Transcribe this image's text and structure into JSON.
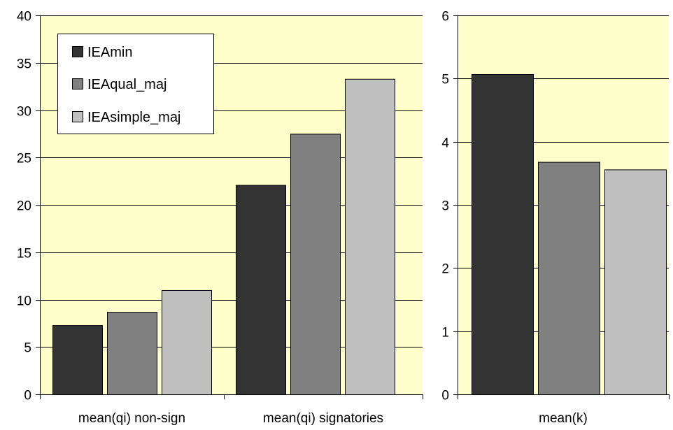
{
  "colors": {
    "plot_background": "#ffffcc",
    "gridline": "#000000",
    "axis": "#000000",
    "bar_border": "#000000",
    "series": [
      "#333333",
      "#808080",
      "#c0c0c0"
    ]
  },
  "legend": {
    "placement": "top-left (left chart)",
    "entries": [
      "IEAmin",
      "IEAqual_maj",
      "IEAsimple_maj"
    ]
  },
  "chart_data": [
    {
      "type": "bar",
      "title": "",
      "xlabel": "",
      "ylabel": "",
      "categories": [
        "mean(qi) non-sign",
        "mean(qi) signatories"
      ],
      "series": [
        {
          "name": "IEAmin",
          "values": [
            7.3,
            22.1
          ]
        },
        {
          "name": "IEAqual_maj",
          "values": [
            8.7,
            27.5
          ]
        },
        {
          "name": "IEAsimple_maj",
          "values": [
            11.0,
            33.3
          ]
        }
      ],
      "ylim": [
        0,
        40
      ],
      "yticks": [
        0,
        5,
        10,
        15,
        20,
        25,
        30,
        35,
        40
      ],
      "ytick_labels": [
        "0",
        "5",
        "10",
        "15",
        "20",
        "25",
        "30",
        "35",
        "40"
      ],
      "grid": "horizontal major gridlines",
      "legend": "top-left"
    },
    {
      "type": "bar",
      "title": "",
      "xlabel": "",
      "ylabel": "",
      "categories": [
        "mean(k)"
      ],
      "series": [
        {
          "name": "IEAmin",
          "values": [
            5.07
          ]
        },
        {
          "name": "IEAqual_maj",
          "values": [
            3.68
          ]
        },
        {
          "name": "IEAsimple_maj",
          "values": [
            3.56
          ]
        }
      ],
      "ylim": [
        0,
        6
      ],
      "yticks": [
        0,
        1,
        2,
        3,
        4,
        5,
        6
      ],
      "ytick_labels": [
        "0",
        "1",
        "2",
        "3",
        "4",
        "5",
        "6"
      ],
      "grid": "horizontal major gridlines",
      "legend": "none"
    }
  ]
}
